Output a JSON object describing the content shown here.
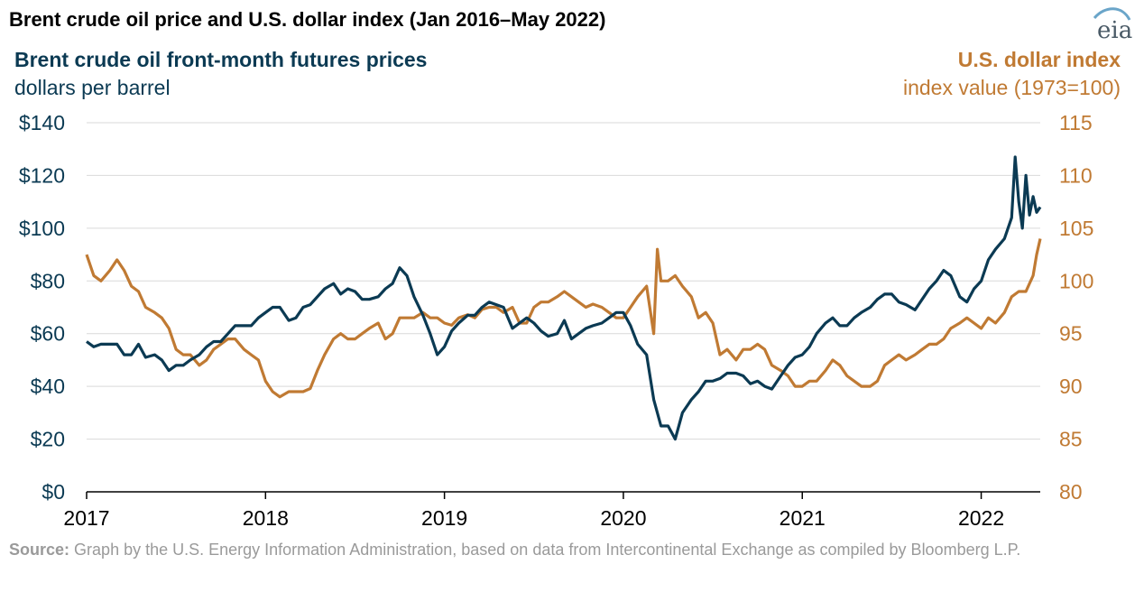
{
  "title": "Brent crude oil price and U.S. dollar index (Jan 2016–May 2022)",
  "logo": "eia",
  "source_label": "Source:",
  "source_text": "Graph by the U.S. Energy Information Administration, based on data from Intercontinental Exchange as compiled by Bloomberg L.P.",
  "colors": {
    "brent": "#0b3a53",
    "dollar": "#c07a33",
    "grid": "#d9d9d9"
  },
  "chart_data": {
    "type": "line",
    "title": "Brent crude oil price and U.S. dollar index (Jan 2016–May 2022)",
    "x_ticks": [
      "2017",
      "2018",
      "2019",
      "2020",
      "2021",
      "2022"
    ],
    "x_range": [
      2017.0,
      2022.33
    ],
    "grid": "horizontal",
    "left_axis": {
      "title": "Brent crude oil front-month futures prices",
      "unit": "dollars per barrel",
      "ylim": [
        0,
        140
      ],
      "ticks": [
        "$0",
        "$20",
        "$40",
        "$60",
        "$80",
        "$100",
        "$120",
        "$140"
      ]
    },
    "right_axis": {
      "title": "U.S. dollar index",
      "unit": "index value (1973=100)",
      "ylim": [
        80,
        115
      ],
      "ticks": [
        "80",
        "85",
        "90",
        "95",
        "100",
        "105",
        "110",
        "115"
      ]
    },
    "series": [
      {
        "name": "Brent crude oil front-month futures prices",
        "axis": "left",
        "color": "#0b3a53",
        "points": [
          [
            2017.0,
            57
          ],
          [
            2017.04,
            55
          ],
          [
            2017.08,
            56
          ],
          [
            2017.13,
            56
          ],
          [
            2017.17,
            56
          ],
          [
            2017.21,
            52
          ],
          [
            2017.25,
            52
          ],
          [
            2017.29,
            56
          ],
          [
            2017.33,
            51
          ],
          [
            2017.38,
            52
          ],
          [
            2017.42,
            50
          ],
          [
            2017.46,
            46
          ],
          [
            2017.5,
            48
          ],
          [
            2017.54,
            48
          ],
          [
            2017.58,
            50
          ],
          [
            2017.63,
            52
          ],
          [
            2017.67,
            55
          ],
          [
            2017.71,
            57
          ],
          [
            2017.75,
            57
          ],
          [
            2017.79,
            60
          ],
          [
            2017.83,
            63
          ],
          [
            2017.88,
            63
          ],
          [
            2017.92,
            63
          ],
          [
            2017.96,
            66
          ],
          [
            2018.0,
            68
          ],
          [
            2018.04,
            70
          ],
          [
            2018.08,
            70
          ],
          [
            2018.13,
            65
          ],
          [
            2018.17,
            66
          ],
          [
            2018.21,
            70
          ],
          [
            2018.25,
            71
          ],
          [
            2018.29,
            74
          ],
          [
            2018.33,
            77
          ],
          [
            2018.38,
            79
          ],
          [
            2018.42,
            75
          ],
          [
            2018.46,
            77
          ],
          [
            2018.5,
            76
          ],
          [
            2018.54,
            73
          ],
          [
            2018.58,
            73
          ],
          [
            2018.63,
            74
          ],
          [
            2018.67,
            77
          ],
          [
            2018.71,
            79
          ],
          [
            2018.75,
            85
          ],
          [
            2018.79,
            82
          ],
          [
            2018.83,
            74
          ],
          [
            2018.88,
            67
          ],
          [
            2018.92,
            60
          ],
          [
            2018.96,
            52
          ],
          [
            2019.0,
            55
          ],
          [
            2019.04,
            61
          ],
          [
            2019.08,
            64
          ],
          [
            2019.13,
            67
          ],
          [
            2019.17,
            67
          ],
          [
            2019.21,
            70
          ],
          [
            2019.25,
            72
          ],
          [
            2019.29,
            71
          ],
          [
            2019.33,
            70
          ],
          [
            2019.38,
            62
          ],
          [
            2019.42,
            64
          ],
          [
            2019.46,
            66
          ],
          [
            2019.5,
            64
          ],
          [
            2019.54,
            61
          ],
          [
            2019.58,
            59
          ],
          [
            2019.63,
            60
          ],
          [
            2019.67,
            65
          ],
          [
            2019.71,
            58
          ],
          [
            2019.75,
            60
          ],
          [
            2019.79,
            62
          ],
          [
            2019.83,
            63
          ],
          [
            2019.88,
            64
          ],
          [
            2019.92,
            66
          ],
          [
            2019.96,
            68
          ],
          [
            2020.0,
            68
          ],
          [
            2020.04,
            63
          ],
          [
            2020.08,
            56
          ],
          [
            2020.13,
            52
          ],
          [
            2020.17,
            35
          ],
          [
            2020.21,
            25
          ],
          [
            2020.25,
            25
          ],
          [
            2020.29,
            20
          ],
          [
            2020.33,
            30
          ],
          [
            2020.38,
            35
          ],
          [
            2020.42,
            38
          ],
          [
            2020.46,
            42
          ],
          [
            2020.5,
            42
          ],
          [
            2020.54,
            43
          ],
          [
            2020.58,
            45
          ],
          [
            2020.63,
            45
          ],
          [
            2020.67,
            44
          ],
          [
            2020.71,
            41
          ],
          [
            2020.75,
            42
          ],
          [
            2020.79,
            40
          ],
          [
            2020.83,
            39
          ],
          [
            2020.88,
            44
          ],
          [
            2020.92,
            48
          ],
          [
            2020.96,
            51
          ],
          [
            2021.0,
            52
          ],
          [
            2021.04,
            55
          ],
          [
            2021.08,
            60
          ],
          [
            2021.13,
            64
          ],
          [
            2021.17,
            66
          ],
          [
            2021.21,
            63
          ],
          [
            2021.25,
            63
          ],
          [
            2021.29,
            66
          ],
          [
            2021.33,
            68
          ],
          [
            2021.38,
            70
          ],
          [
            2021.42,
            73
          ],
          [
            2021.46,
            75
          ],
          [
            2021.5,
            75
          ],
          [
            2021.54,
            72
          ],
          [
            2021.58,
            71
          ],
          [
            2021.63,
            69
          ],
          [
            2021.67,
            73
          ],
          [
            2021.71,
            77
          ],
          [
            2021.75,
            80
          ],
          [
            2021.79,
            84
          ],
          [
            2021.83,
            82
          ],
          [
            2021.88,
            74
          ],
          [
            2021.92,
            72
          ],
          [
            2021.96,
            77
          ],
          [
            2022.0,
            80
          ],
          [
            2022.04,
            88
          ],
          [
            2022.08,
            92
          ],
          [
            2022.13,
            96
          ],
          [
            2022.17,
            104
          ],
          [
            2022.19,
            127
          ],
          [
            2022.21,
            110
          ],
          [
            2022.23,
            100
          ],
          [
            2022.25,
            120
          ],
          [
            2022.27,
            105
          ],
          [
            2022.29,
            112
          ],
          [
            2022.31,
            106
          ],
          [
            2022.33,
            108
          ]
        ]
      },
      {
        "name": "U.S. dollar index",
        "axis": "right",
        "color": "#c07a33",
        "points": [
          [
            2017.0,
            102.5
          ],
          [
            2017.04,
            100.5
          ],
          [
            2017.08,
            100.0
          ],
          [
            2017.13,
            101.0
          ],
          [
            2017.17,
            102.0
          ],
          [
            2017.21,
            101.0
          ],
          [
            2017.25,
            99.5
          ],
          [
            2017.29,
            99.0
          ],
          [
            2017.33,
            97.5
          ],
          [
            2017.38,
            97.0
          ],
          [
            2017.42,
            96.5
          ],
          [
            2017.46,
            95.5
          ],
          [
            2017.5,
            93.5
          ],
          [
            2017.54,
            93.0
          ],
          [
            2017.58,
            93.0
          ],
          [
            2017.63,
            92.0
          ],
          [
            2017.67,
            92.5
          ],
          [
            2017.71,
            93.5
          ],
          [
            2017.75,
            94.0
          ],
          [
            2017.79,
            94.5
          ],
          [
            2017.83,
            94.5
          ],
          [
            2017.88,
            93.5
          ],
          [
            2017.92,
            93.0
          ],
          [
            2017.96,
            92.5
          ],
          [
            2018.0,
            90.5
          ],
          [
            2018.04,
            89.5
          ],
          [
            2018.08,
            89.0
          ],
          [
            2018.13,
            89.5
          ],
          [
            2018.17,
            89.5
          ],
          [
            2018.21,
            89.5
          ],
          [
            2018.25,
            89.8
          ],
          [
            2018.29,
            91.5
          ],
          [
            2018.33,
            93.0
          ],
          [
            2018.38,
            94.5
          ],
          [
            2018.42,
            95.0
          ],
          [
            2018.46,
            94.5
          ],
          [
            2018.5,
            94.5
          ],
          [
            2018.54,
            95.0
          ],
          [
            2018.58,
            95.5
          ],
          [
            2018.63,
            96.0
          ],
          [
            2018.67,
            94.5
          ],
          [
            2018.71,
            95.0
          ],
          [
            2018.75,
            96.5
          ],
          [
            2018.79,
            96.5
          ],
          [
            2018.83,
            96.5
          ],
          [
            2018.88,
            97.0
          ],
          [
            2018.92,
            96.5
          ],
          [
            2018.96,
            96.5
          ],
          [
            2019.0,
            96.0
          ],
          [
            2019.04,
            95.8
          ],
          [
            2019.08,
            96.5
          ],
          [
            2019.13,
            96.8
          ],
          [
            2019.17,
            96.5
          ],
          [
            2019.21,
            97.3
          ],
          [
            2019.25,
            97.5
          ],
          [
            2019.29,
            97.5
          ],
          [
            2019.33,
            97.0
          ],
          [
            2019.38,
            97.5
          ],
          [
            2019.42,
            96.0
          ],
          [
            2019.46,
            96.0
          ],
          [
            2019.5,
            97.5
          ],
          [
            2019.54,
            98.0
          ],
          [
            2019.58,
            98.0
          ],
          [
            2019.63,
            98.5
          ],
          [
            2019.67,
            99.0
          ],
          [
            2019.71,
            98.5
          ],
          [
            2019.75,
            98.0
          ],
          [
            2019.79,
            97.5
          ],
          [
            2019.83,
            97.8
          ],
          [
            2019.88,
            97.5
          ],
          [
            2019.92,
            97.0
          ],
          [
            2019.96,
            96.5
          ],
          [
            2020.0,
            96.5
          ],
          [
            2020.04,
            97.5
          ],
          [
            2020.08,
            98.5
          ],
          [
            2020.13,
            99.5
          ],
          [
            2020.17,
            95.0
          ],
          [
            2020.19,
            103.0
          ],
          [
            2020.21,
            100.0
          ],
          [
            2020.25,
            100.0
          ],
          [
            2020.29,
            100.5
          ],
          [
            2020.33,
            99.5
          ],
          [
            2020.38,
            98.5
          ],
          [
            2020.42,
            96.5
          ],
          [
            2020.46,
            97.0
          ],
          [
            2020.5,
            96.0
          ],
          [
            2020.54,
            93.0
          ],
          [
            2020.58,
            93.5
          ],
          [
            2020.63,
            92.5
          ],
          [
            2020.67,
            93.5
          ],
          [
            2020.71,
            93.5
          ],
          [
            2020.75,
            94.0
          ],
          [
            2020.79,
            93.5
          ],
          [
            2020.83,
            92.0
          ],
          [
            2020.88,
            91.5
          ],
          [
            2020.92,
            91.0
          ],
          [
            2020.96,
            90.0
          ],
          [
            2021.0,
            90.0
          ],
          [
            2021.04,
            90.5
          ],
          [
            2021.08,
            90.5
          ],
          [
            2021.13,
            91.5
          ],
          [
            2021.17,
            92.5
          ],
          [
            2021.21,
            92.0
          ],
          [
            2021.25,
            91.0
          ],
          [
            2021.29,
            90.5
          ],
          [
            2021.33,
            90.0
          ],
          [
            2021.38,
            90.0
          ],
          [
            2021.42,
            90.5
          ],
          [
            2021.46,
            92.0
          ],
          [
            2021.5,
            92.5
          ],
          [
            2021.54,
            93.0
          ],
          [
            2021.58,
            92.5
          ],
          [
            2021.63,
            93.0
          ],
          [
            2021.67,
            93.5
          ],
          [
            2021.71,
            94.0
          ],
          [
            2021.75,
            94.0
          ],
          [
            2021.79,
            94.5
          ],
          [
            2021.83,
            95.5
          ],
          [
            2021.88,
            96.0
          ],
          [
            2021.92,
            96.5
          ],
          [
            2021.96,
            96.0
          ],
          [
            2022.0,
            95.5
          ],
          [
            2022.04,
            96.5
          ],
          [
            2022.08,
            96.0
          ],
          [
            2022.13,
            97.0
          ],
          [
            2022.17,
            98.5
          ],
          [
            2022.21,
            99.0
          ],
          [
            2022.25,
            99.0
          ],
          [
            2022.29,
            100.5
          ],
          [
            2022.31,
            102.5
          ],
          [
            2022.33,
            104.0
          ]
        ]
      }
    ]
  }
}
